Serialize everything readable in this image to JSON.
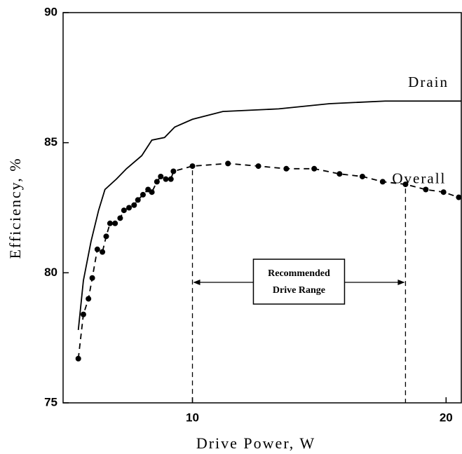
{
  "chart_data": {
    "type": "line",
    "x_label": "Drive Power, W",
    "y_label": "Efficiency, %",
    "xlim": [
      4.9,
      20.6
    ],
    "ylim": [
      75,
      90
    ],
    "xticks": [
      10,
      20
    ],
    "yticks": [
      75,
      80,
      85,
      90
    ],
    "series": [
      {
        "name": "Drain",
        "color": "#000000",
        "dashed": false,
        "markers": false,
        "x": [
          5.5,
          5.7,
          6.0,
          6.3,
          6.55,
          7.0,
          7.4,
          8.0,
          8.4,
          8.9,
          9.3,
          10.0,
          11.2,
          13.4,
          15.4,
          17.6,
          20.6
        ],
        "values": [
          77.8,
          79.7,
          81.2,
          82.4,
          83.2,
          83.6,
          84.0,
          84.5,
          85.1,
          85.2,
          85.6,
          85.9,
          86.2,
          86.3,
          86.5,
          86.6,
          86.6
        ]
      },
      {
        "name": "Overall",
        "color": "#000000",
        "dashed": true,
        "markers": true,
        "x": [
          5.5,
          5.7,
          5.9,
          6.05,
          6.25,
          6.45,
          6.6,
          6.75,
          6.95,
          7.15,
          7.3,
          7.5,
          7.7,
          7.85,
          8.05,
          8.25,
          8.4,
          8.6,
          8.75,
          8.95,
          9.15,
          9.25,
          10.0,
          11.4,
          12.6,
          13.7,
          14.8,
          15.8,
          16.7,
          17.5,
          18.4,
          19.2,
          19.9,
          20.5
        ],
        "values": [
          76.7,
          78.4,
          79.0,
          79.8,
          80.9,
          80.8,
          81.4,
          81.9,
          81.9,
          82.1,
          82.4,
          82.5,
          82.6,
          82.8,
          83.0,
          83.2,
          83.1,
          83.5,
          83.7,
          83.6,
          83.6,
          83.9,
          84.1,
          84.2,
          84.1,
          84.0,
          84.0,
          83.8,
          83.7,
          83.5,
          83.4,
          83.2,
          83.1,
          82.9
        ]
      }
    ],
    "annotation": {
      "text_lines": [
        "Recommended",
        "Drive Range"
      ],
      "range": [
        10,
        18.4
      ]
    }
  }
}
